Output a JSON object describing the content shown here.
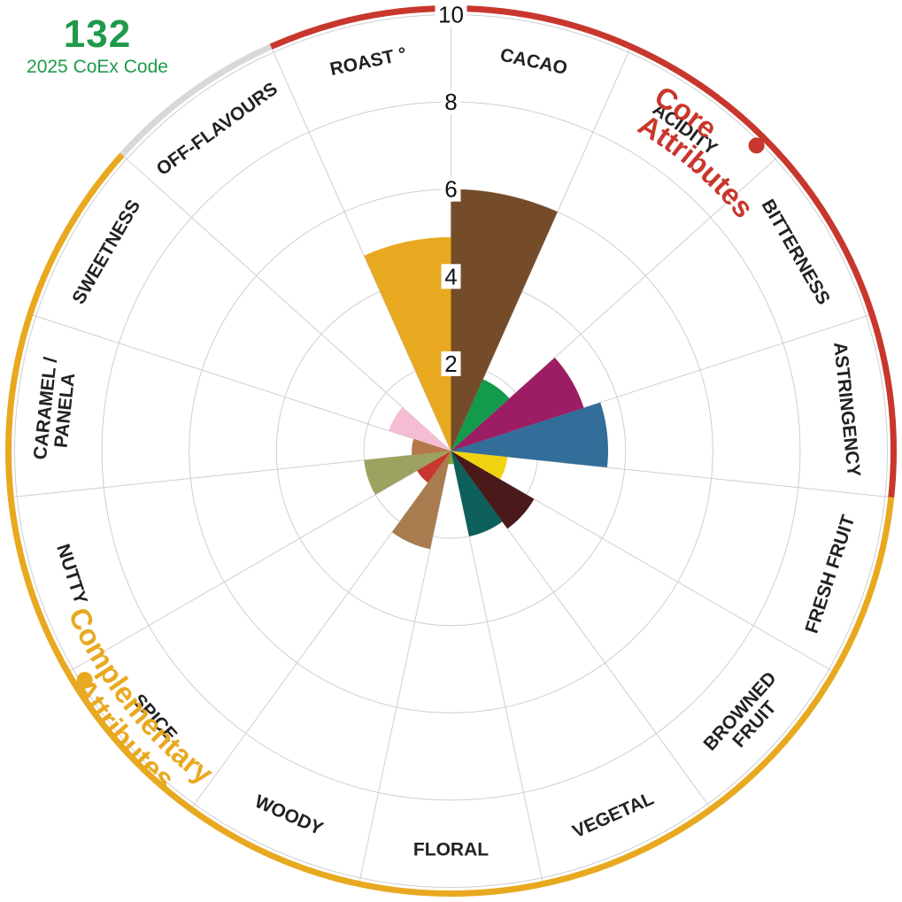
{
  "code": {
    "number": "132",
    "label": "2025 CoEx Code"
  },
  "chart_data": {
    "type": "polar-bar",
    "rmax": 10,
    "ticks": [
      "2",
      "4",
      "6",
      "8",
      "10"
    ],
    "categories": [
      "CACAO",
      "ACIDITY",
      "BITTERNESS",
      "ASTRINGENCY",
      "FRESH FRUIT",
      "BROWNED FRUIT",
      "VEGETAL",
      "FLORAL",
      "WOODY",
      "SPICE",
      "NUTTY",
      "CARAMEL / PANELA",
      "SWEETNESS",
      "OFF-FLAVOURS",
      "ROAST °"
    ],
    "values": [
      6.0,
      1.8,
      3.2,
      3.6,
      1.3,
      2.2,
      2.0,
      0.3,
      2.3,
      0.9,
      2.0,
      0.9,
      1.5,
      0,
      4.9
    ],
    "colors": [
      "#754c29",
      "#139a4d",
      "#9c1d63",
      "#336d99",
      "#f1d20f",
      "#4a1a1a",
      "#0c5f5b",
      "#7aa833",
      "#a87c4f",
      "#c8372d",
      "#9ea260",
      "#b5784a",
      "#f5bcd4",
      "#cccccc",
      "#e8a920"
    ],
    "groups": [
      {
        "name": "Core Attributes",
        "lines": [
          "Core",
          "Attributes"
        ],
        "color": "#c8372d"
      },
      {
        "name": "Complementary Attributes",
        "lines": [
          "Complementary",
          "Attributes"
        ],
        "color": "#e8a920"
      },
      {
        "name": "Off-flavours",
        "color": "#d8d8d8"
      }
    ]
  }
}
